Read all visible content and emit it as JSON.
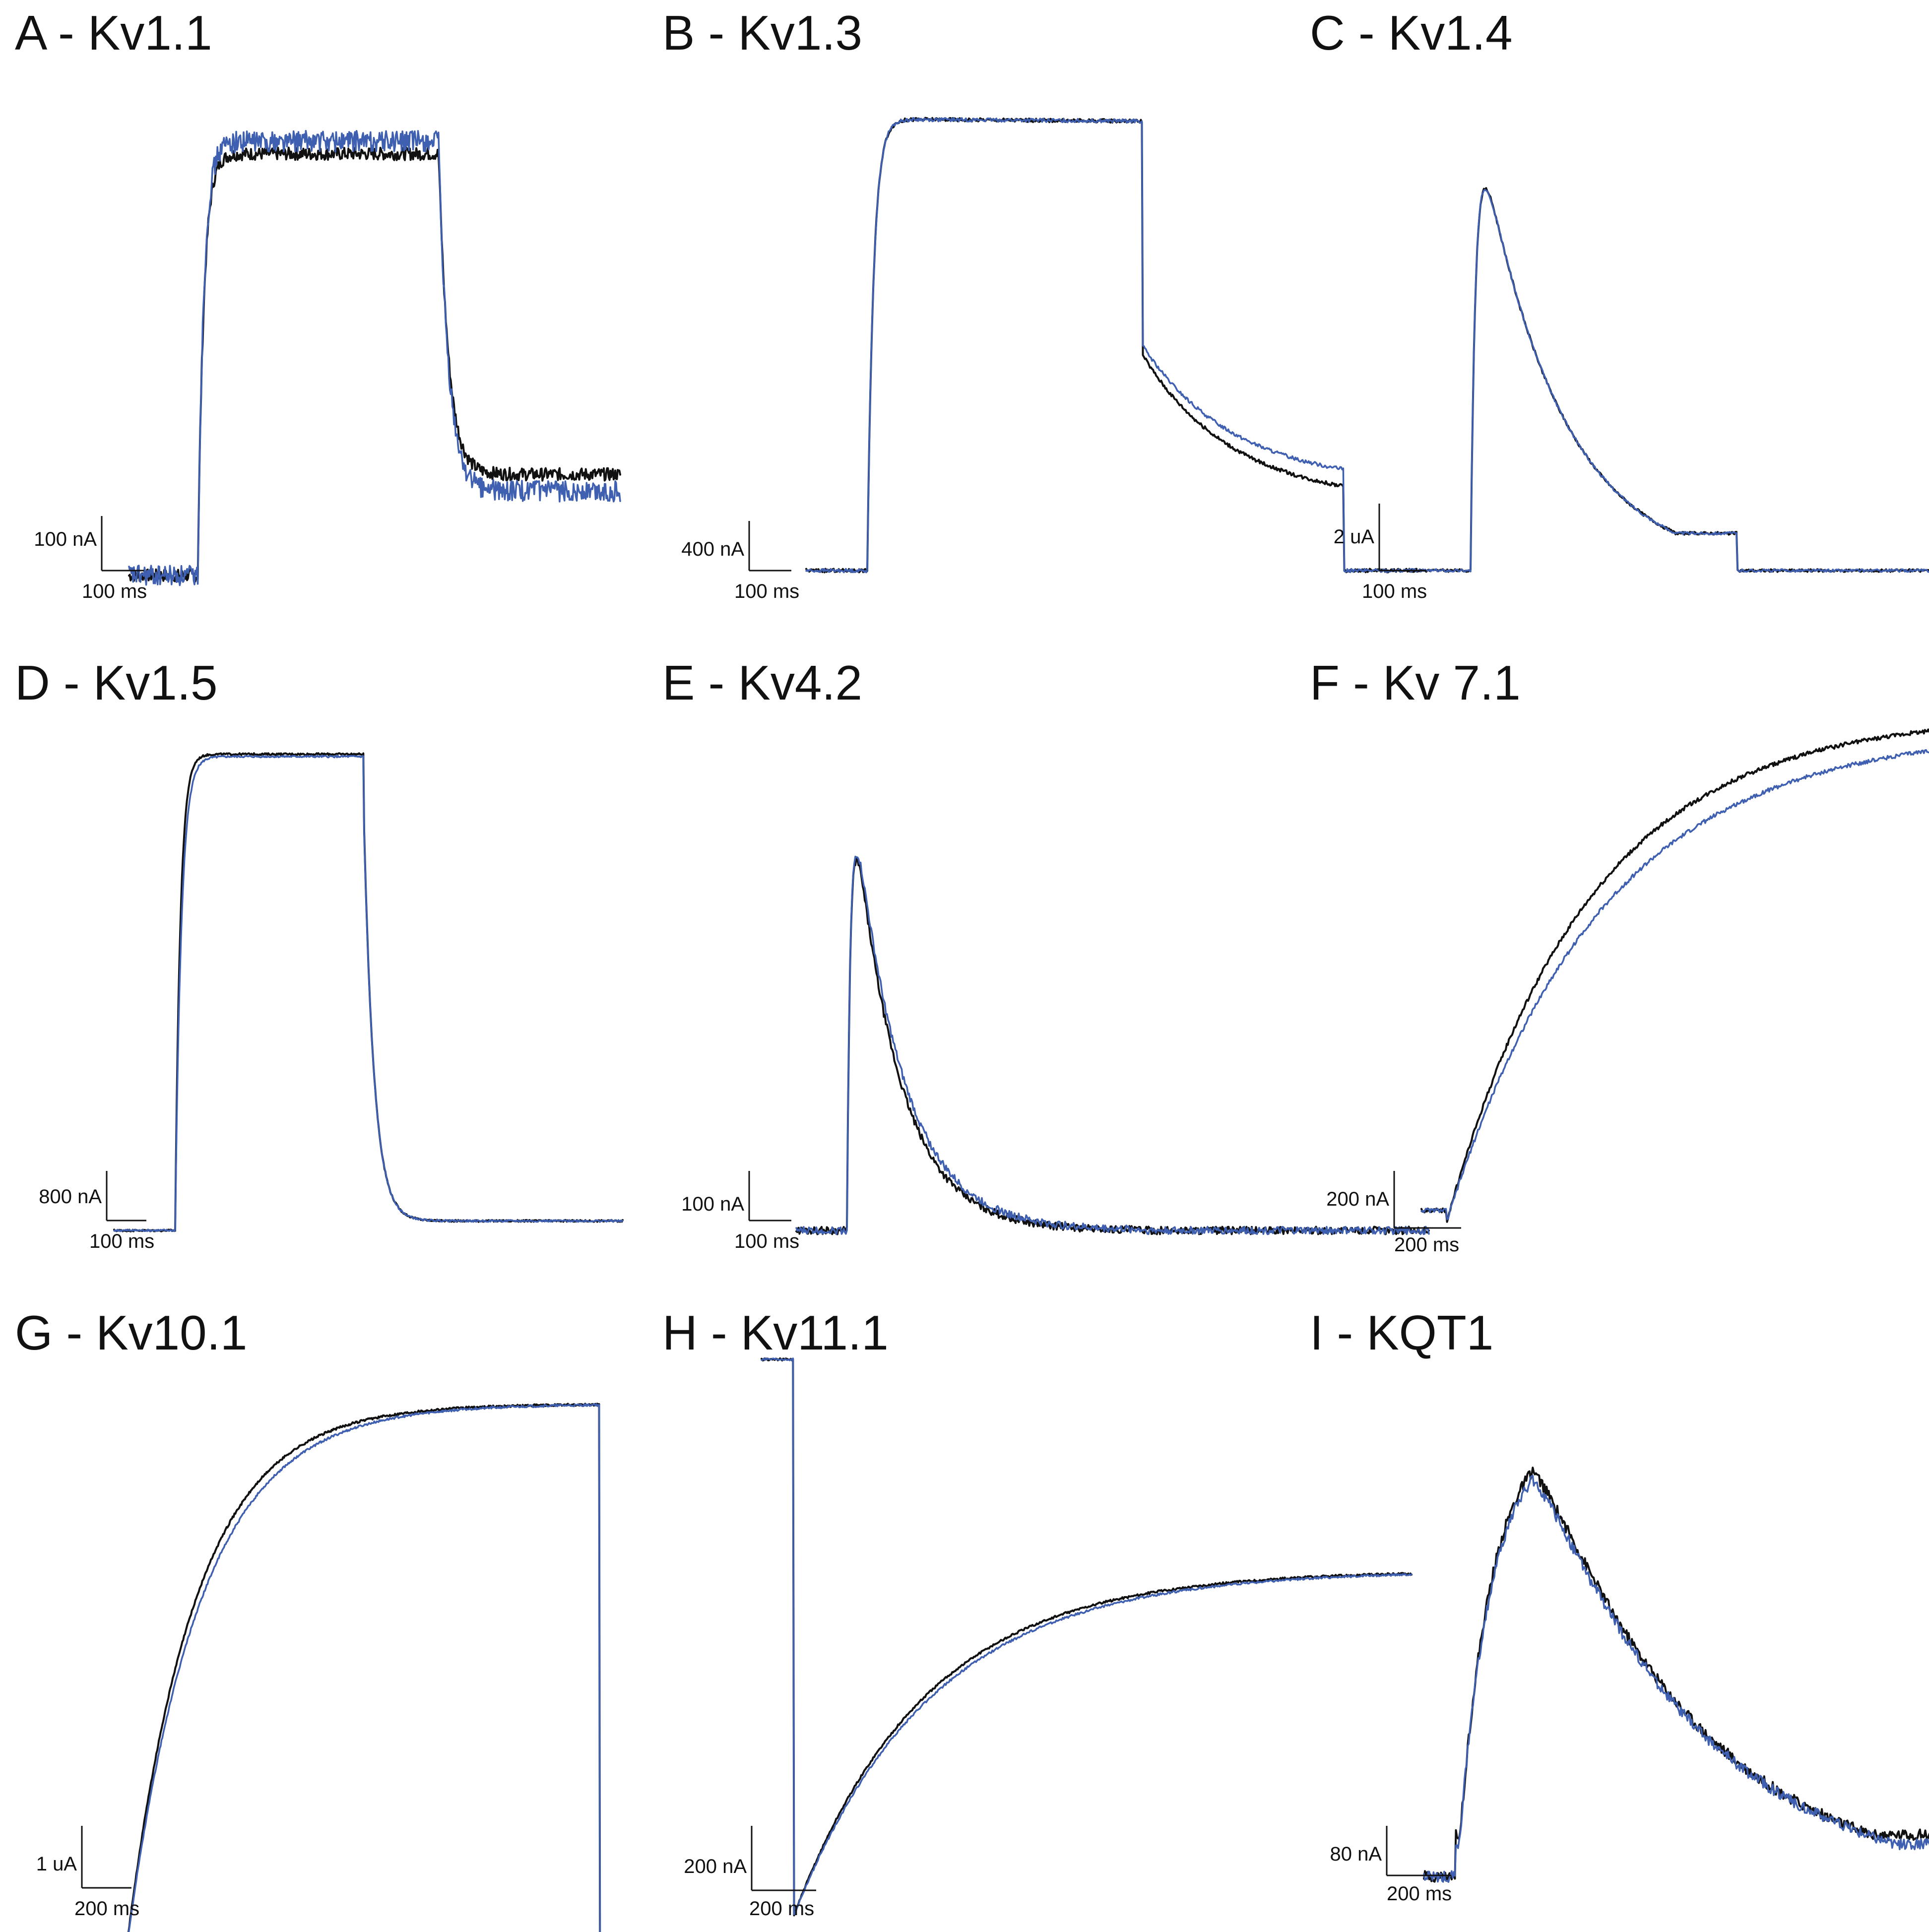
{
  "colors": {
    "trace_1": "#111111",
    "trace_2": "#3f5fb0",
    "scale_bar": "#111111"
  },
  "chart_data": [
    {
      "type": "line",
      "title": "A - Kv1.1",
      "scale_bars": {
        "current": "100 nA",
        "time": "100 ms"
      },
      "protocol": {
        "baseline": 0.08,
        "onset": 0.14,
        "end": 0.63
      },
      "series": [
        {
          "color": "#111111",
          "kind": "sustained",
          "peak": 1.0,
          "tau_on": 0.012,
          "tail": 0.12,
          "tau_tail": 0.02,
          "noise": 0.015
        },
        {
          "color": "#3f5fb0",
          "kind": "sustained",
          "peak": 1.03,
          "tau_on": 0.012,
          "tail": 0.1,
          "tau_tail": 0.02,
          "noise": 0.025
        }
      ]
    },
    {
      "type": "line",
      "title": "B - Kv1.3",
      "scale_bars": {
        "current": "400 nA",
        "time": "100 ms"
      },
      "protocol": {
        "baseline": 0.0,
        "onset": 0.1,
        "end": 0.55,
        "tail_end": 0.88
      },
      "series": [
        {
          "color": "#111111",
          "kind": "slow_tail",
          "peak": 1.0,
          "tau_on": 0.01,
          "drop": 0.72,
          "tail_final": 0.05,
          "tau_tail": 0.15,
          "noise": 0.004
        },
        {
          "color": "#3f5fb0",
          "kind": "slow_tail",
          "peak": 1.0,
          "tau_on": 0.01,
          "drop": 0.74,
          "tail_final": 0.07,
          "tau_tail": 0.15,
          "noise": 0.004
        }
      ]
    },
    {
      "type": "line",
      "title": "C - Kv1.4",
      "scale_bars": {
        "current": "2 uA",
        "time": "100 ms"
      },
      "protocol": {
        "baseline": 0.0,
        "onset": 0.1,
        "end": 0.5
      },
      "series": [
        {
          "color": "#111111",
          "kind": "transient",
          "peak": 1.0,
          "tau_on": 0.008,
          "tau_decay": 0.12,
          "floor": 0.08,
          "noise": 0.003
        },
        {
          "color": "#3f5fb0",
          "kind": "transient",
          "peak": 1.0,
          "tau_on": 0.008,
          "tau_decay": 0.12,
          "floor": 0.08,
          "noise": 0.003
        }
      ]
    },
    {
      "type": "line",
      "title": "D - Kv1.5",
      "scale_bars": {
        "current": "800 nA",
        "time": "100 ms"
      },
      "protocol": {
        "baseline": 0.0,
        "onset": 0.12,
        "end": 0.49
      },
      "series": [
        {
          "color": "#111111",
          "kind": "sustained",
          "peak": 1.0,
          "tau_on": 0.01,
          "tail": 0.01,
          "tau_tail": 0.02,
          "noise": 0.002
        },
        {
          "color": "#3f5fb0",
          "kind": "sustained",
          "peak": 0.995,
          "tau_on": 0.012,
          "tail": 0.01,
          "tau_tail": 0.02,
          "noise": 0.002
        }
      ]
    },
    {
      "type": "line",
      "title": "E - Kv4.2",
      "scale_bars": {
        "current": "100 nA",
        "time": "100 ms"
      },
      "protocol": {
        "baseline": 0.0,
        "onset": 0.08,
        "end": 0.55
      },
      "series": [
        {
          "color": "#111111",
          "kind": "transient",
          "peak": 1.0,
          "tau_on": 0.006,
          "tau_decay": 0.07,
          "floor": 0.0,
          "noise": 0.008
        },
        {
          "color": "#3f5fb0",
          "kind": "transient",
          "peak": 1.0,
          "tau_on": 0.006,
          "tau_decay": 0.075,
          "floor": 0.0,
          "noise": 0.008
        }
      ]
    },
    {
      "type": "line",
      "title": "F - Kv 7.1",
      "scale_bars": {
        "current": "200 nA",
        "time": "200 ms"
      },
      "protocol": {
        "baseline": 0.0,
        "onset": 0.04,
        "end": 0.93
      },
      "series": [
        {
          "color": "#111111",
          "kind": "slow_rise",
          "peak": 1.0,
          "tau_on": 0.22,
          "noise": 0.004
        },
        {
          "color": "#3f5fb0",
          "kind": "slow_rise",
          "peak": 0.97,
          "tau_on": 0.24,
          "noise": 0.004
        }
      ]
    },
    {
      "type": "line",
      "title": "G - Kv10.1",
      "scale_bars": {
        "current": "1 uA",
        "time": "200 ms"
      },
      "protocol": {
        "baseline": 0.0,
        "onset": 0.04,
        "end": 0.95
      },
      "series": [
        {
          "color": "#111111",
          "kind": "slow_rise",
          "peak": 1.0,
          "tau_on": 0.13,
          "noise": 0.002
        },
        {
          "color": "#3f5fb0",
          "kind": "slow_rise",
          "peak": 1.0,
          "tau_on": 0.14,
          "noise": 0.002
        }
      ]
    },
    {
      "type": "line",
      "title": "H - Kv11.1",
      "scale_bars": {
        "current": "200 nA",
        "time": "200 ms"
      },
      "protocol": {
        "baseline": 1.0,
        "onset": 0.05,
        "end": 1.0
      },
      "series": [
        {
          "color": "#111111",
          "kind": "herg",
          "peak": 0.62,
          "tau_on": 0.2,
          "noise": 0.002
        },
        {
          "color": "#3f5fb0",
          "kind": "herg",
          "peak": 0.62,
          "tau_on": 0.21,
          "noise": 0.002
        }
      ]
    },
    {
      "type": "line",
      "title": "I - KQT1",
      "scale_bars": {
        "current": "80 nA",
        "time": "200 ms"
      },
      "protocol": {
        "baseline": 0.0,
        "onset": 0.05,
        "end": 0.9
      },
      "series": [
        {
          "color": "#111111",
          "kind": "bump",
          "peak": 1.0,
          "tau_on": 0.05,
          "tau_decay": 0.25,
          "floor": 0.12,
          "noise": 0.012
        },
        {
          "color": "#3f5fb0",
          "kind": "bump",
          "peak": 0.98,
          "tau_on": 0.05,
          "tau_decay": 0.25,
          "floor": 0.1,
          "noise": 0.012
        }
      ]
    }
  ]
}
